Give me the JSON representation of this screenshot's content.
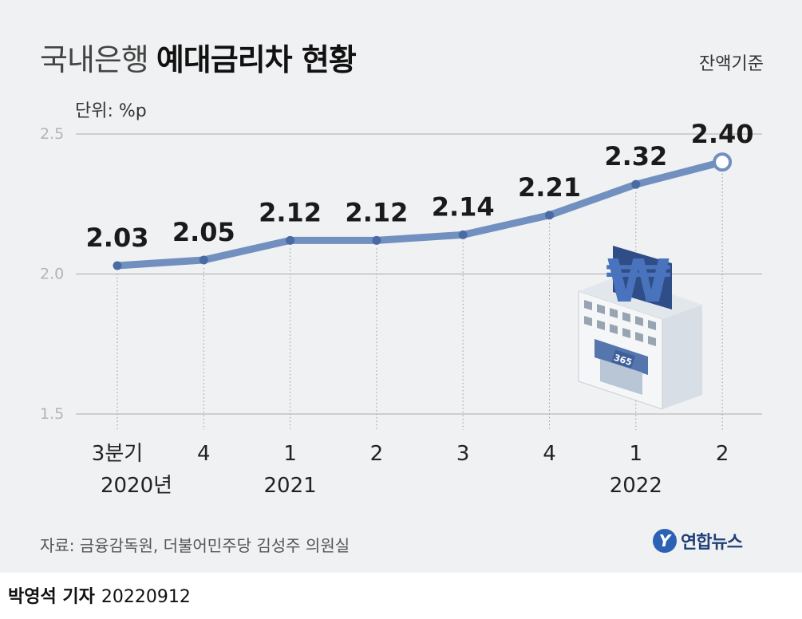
{
  "title": {
    "light": "국내은행",
    "bold": "예대금리차 현황"
  },
  "basis_note": "잔액기준",
  "source": "자료: 금융감독원, 더불어민주당 김성주 의원실",
  "logo": {
    "mark": "Y",
    "text": "연합뉴스"
  },
  "byline": {
    "name": "박영석 기자",
    "date": "20220912"
  },
  "building": {
    "sign": "365"
  },
  "colors": {
    "line": "#7190c0",
    "point": "#4a6aa3",
    "grid": "#aaaaaa",
    "background": "#f0f1f2"
  },
  "chart_data": {
    "type": "line",
    "unit_label": "단위: %p",
    "categories": [
      "3분기",
      "4",
      "1",
      "2",
      "3",
      "4",
      "1",
      "2"
    ],
    "year_labels": [
      "2020년",
      "",
      "2021",
      "",
      "",
      "",
      "2022",
      ""
    ],
    "values": [
      2.03,
      2.05,
      2.12,
      2.12,
      2.14,
      2.21,
      2.32,
      2.4
    ],
    "value_labels": [
      "2.03",
      "2.05",
      "2.12",
      "2.12",
      "2.14",
      "2.21",
      "2.32",
      "2.40"
    ],
    "ylim": [
      1.5,
      2.5
    ],
    "yticks": [
      "1.5",
      "2.0",
      "2.5"
    ],
    "grid": true,
    "highlight_last": true
  }
}
